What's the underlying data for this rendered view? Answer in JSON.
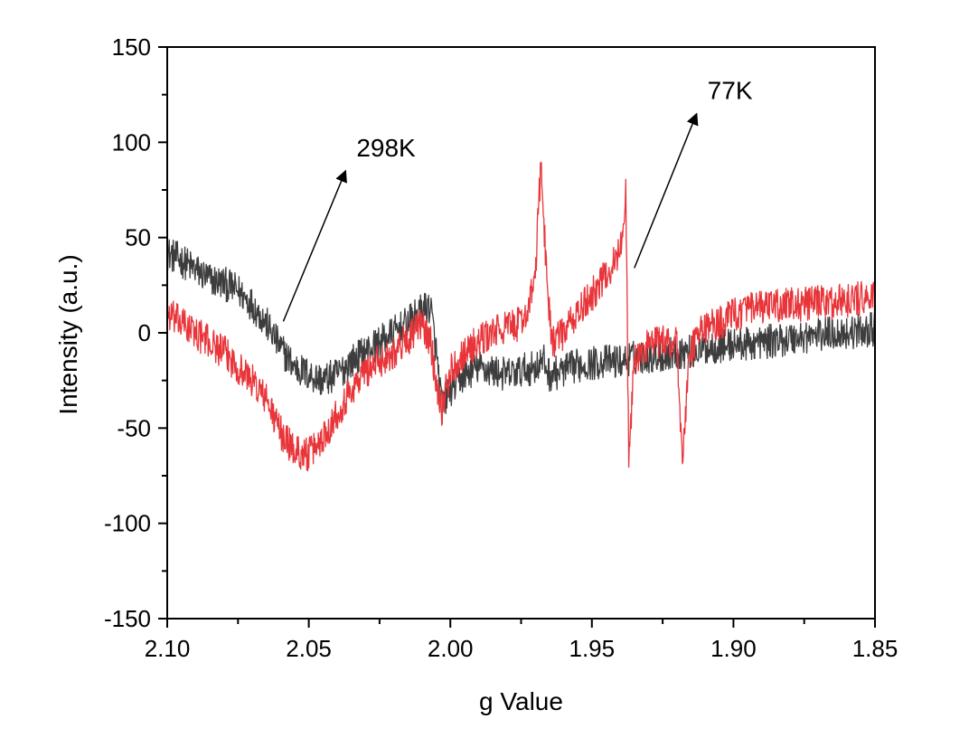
{
  "chart_data": {
    "type": "line",
    "title": "",
    "xlabel": "g Value",
    "ylabel": "Intensity (a.u.)",
    "xlim": [
      2.1,
      1.85
    ],
    "x_reversed": true,
    "ylim": [
      -150,
      150
    ],
    "x_ticks": [
      2.1,
      2.05,
      2.0,
      1.95,
      1.9,
      1.85
    ],
    "x_tick_labels": [
      "2.10",
      "2.05",
      "2.00",
      "1.95",
      "1.90",
      "1.85"
    ],
    "y_ticks": [
      150,
      100,
      50,
      0,
      -50,
      -100,
      -150
    ],
    "y_tick_labels": [
      "150",
      "100",
      "50",
      "0",
      "-50",
      "-100",
      "-150"
    ],
    "grid": false,
    "legend": "none",
    "series": [
      {
        "name": "298K",
        "color": "#3d3d3d",
        "noise": 9,
        "x": [
          2.1,
          2.095,
          2.09,
          2.085,
          2.08,
          2.075,
          2.07,
          2.065,
          2.06,
          2.055,
          2.05,
          2.045,
          2.04,
          2.035,
          2.03,
          2.025,
          2.02,
          2.015,
          2.01,
          2.007,
          2.005,
          2.003,
          2.0,
          1.995,
          1.99,
          1.985,
          1.98,
          1.975,
          1.97,
          1.967,
          1.965,
          1.96,
          1.955,
          1.95,
          1.945,
          1.94,
          1.935,
          1.93,
          1.925,
          1.92,
          1.915,
          1.91,
          1.905,
          1.9,
          1.895,
          1.89,
          1.885,
          1.88,
          1.875,
          1.87,
          1.865,
          1.86,
          1.855,
          1.85
        ],
        "y": [
          42,
          38,
          33,
          28,
          26,
          22,
          15,
          5,
          -8,
          -18,
          -22,
          -25,
          -22,
          -15,
          -10,
          -5,
          0,
          5,
          12,
          14,
          -10,
          -38,
          -30,
          -22,
          -18,
          -20,
          -22,
          -20,
          -18,
          -15,
          -22,
          -20,
          -17,
          -16,
          -15,
          -15,
          -13,
          -12,
          -12,
          -10,
          -10,
          -8,
          -7,
          -6,
          -6,
          -5,
          -4,
          -3,
          -2,
          -1,
          0,
          0,
          1,
          2
        ]
      },
      {
        "name": "77K",
        "color": "#e8353a",
        "noise": 9,
        "x": [
          2.1,
          2.095,
          2.09,
          2.085,
          2.08,
          2.075,
          2.07,
          2.065,
          2.06,
          2.055,
          2.05,
          2.045,
          2.04,
          2.035,
          2.03,
          2.025,
          2.02,
          2.015,
          2.01,
          2.007,
          2.005,
          2.003,
          2.0,
          1.995,
          1.99,
          1.985,
          1.98,
          1.975,
          1.972,
          1.97,
          1.968,
          1.966,
          1.964,
          1.96,
          1.955,
          1.95,
          1.945,
          1.942,
          1.94,
          1.938,
          1.937,
          1.936,
          1.935,
          1.932,
          1.93,
          1.925,
          1.922,
          1.92,
          1.918,
          1.916,
          1.914,
          1.912,
          1.91,
          1.905,
          1.9,
          1.895,
          1.89,
          1.885,
          1.88,
          1.875,
          1.87,
          1.865,
          1.86,
          1.855,
          1.85
        ],
        "y": [
          10,
          5,
          0,
          -5,
          -10,
          -18,
          -25,
          -35,
          -52,
          -62,
          -64,
          -55,
          -42,
          -30,
          -20,
          -15,
          -10,
          -3,
          5,
          -5,
          -25,
          -40,
          -20,
          -10,
          -5,
          0,
          3,
          5,
          15,
          30,
          90,
          30,
          -5,
          0,
          10,
          20,
          30,
          38,
          42,
          75,
          -65,
          -40,
          -15,
          -10,
          -5,
          -5,
          -5,
          -3,
          -70,
          -20,
          -5,
          0,
          3,
          5,
          10,
          12,
          13,
          14,
          15,
          15,
          16,
          16,
          17,
          18,
          18
        ]
      }
    ],
    "annotations": [
      {
        "text": "298K",
        "arrow_from": [
          2.059,
          6
        ],
        "arrow_to": [
          2.037,
          85
        ]
      },
      {
        "text": "77K",
        "arrow_from": [
          1.935,
          34
        ],
        "arrow_to": [
          1.913,
          115
        ]
      }
    ]
  }
}
